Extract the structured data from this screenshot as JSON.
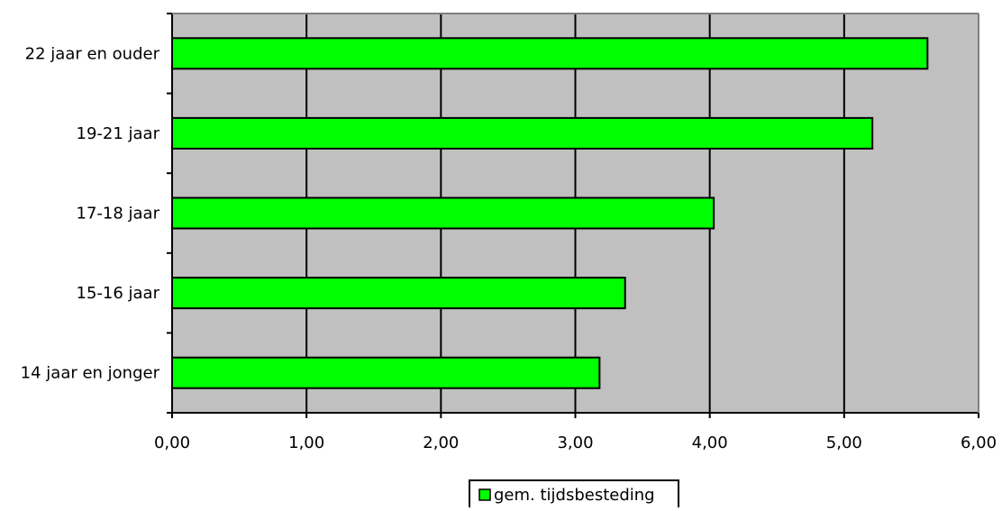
{
  "chart_data": {
    "type": "bar",
    "orientation": "horizontal",
    "categories": [
      "22 jaar en ouder",
      "19-21 jaar",
      "17-18 jaar",
      "15-16 jaar",
      "14 jaar en jonger"
    ],
    "series": [
      {
        "name": "gem. tijdsbesteding",
        "values": [
          5.62,
          5.21,
          4.03,
          3.37,
          3.18
        ],
        "color": "#00ff00"
      }
    ],
    "xlim": [
      0,
      6
    ],
    "xticks": [
      0,
      1,
      2,
      3,
      4,
      5,
      6
    ],
    "xtick_labels": [
      "0,00",
      "1,00",
      "2,00",
      "3,00",
      "4,00",
      "5,00",
      "6,00"
    ],
    "grid": true,
    "plot_background": "#c0c0c0",
    "legend_position": "bottom"
  }
}
